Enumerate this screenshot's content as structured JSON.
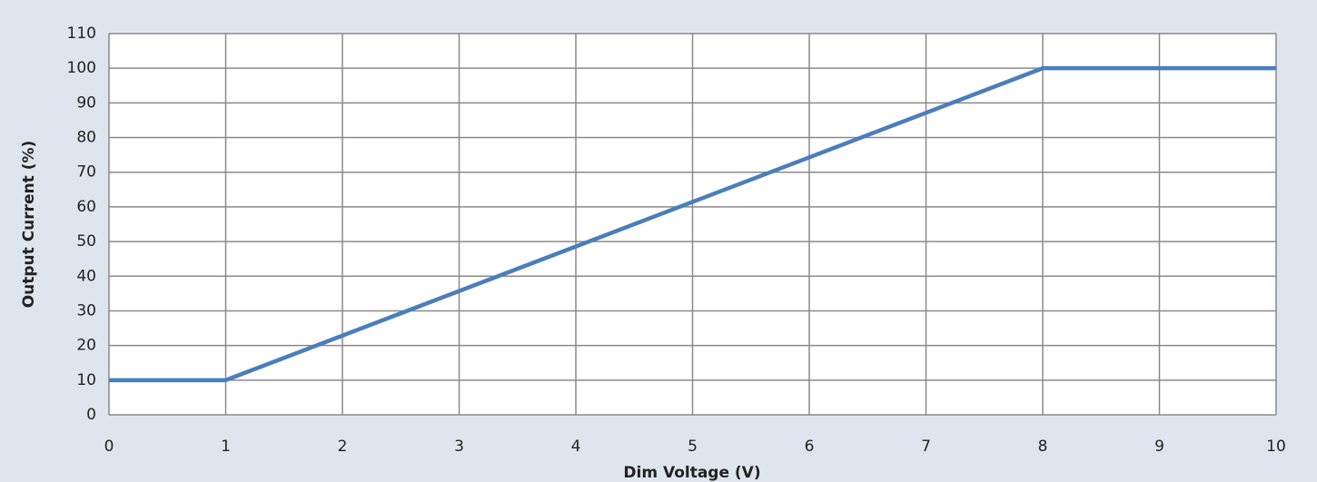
{
  "chart_data": {
    "type": "line",
    "x_label": "Dim Voltage (V)",
    "y_label": "Output Current (%)",
    "x": [
      0,
      1,
      8,
      10
    ],
    "series": [
      {
        "name": "Output Current",
        "color": "#4a7ebb",
        "values": [
          10,
          10,
          100,
          100
        ]
      }
    ],
    "xlim": [
      0,
      10
    ],
    "xticks": [
      0,
      1,
      2,
      3,
      4,
      5,
      6,
      7,
      8,
      9,
      10
    ],
    "ylim": [
      0,
      110
    ],
    "yticks": [
      0,
      10,
      20,
      30,
      40,
      50,
      60,
      70,
      80,
      90,
      100,
      110
    ],
    "grid": true
  }
}
